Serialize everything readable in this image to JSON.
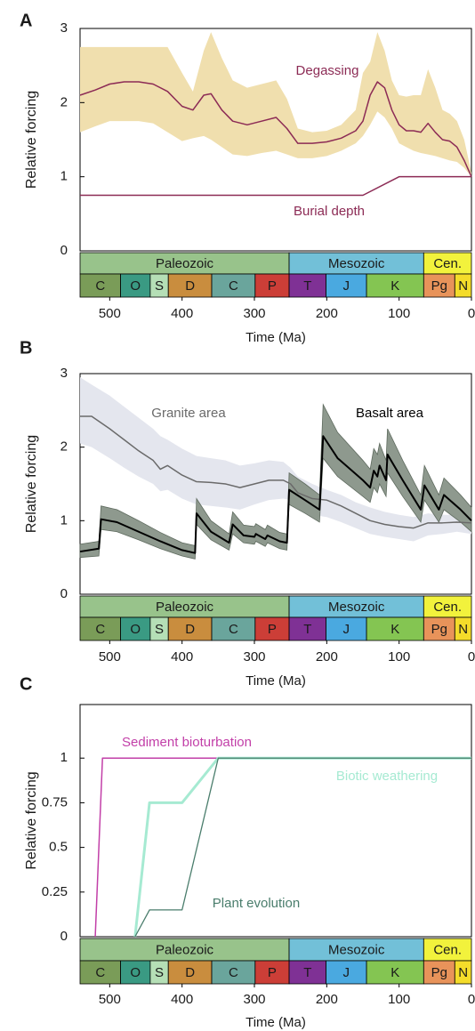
{
  "timescale": {
    "eras": [
      {
        "name": "Paleozoic",
        "start": 541,
        "end": 252,
        "color": "#98c38b"
      },
      {
        "name": "Mesozoic",
        "start": 252,
        "end": 66,
        "color": "#72c0d8"
      },
      {
        "name": "Cen.",
        "start": 66,
        "end": 0,
        "color": "#f2f23c"
      }
    ],
    "periods": [
      {
        "name": "C",
        "start": 541,
        "end": 485,
        "color": "#7a9c58"
      },
      {
        "name": "O",
        "start": 485,
        "end": 444,
        "color": "#3a9a83"
      },
      {
        "name": "S",
        "start": 444,
        "end": 419,
        "color": "#b5dfb6"
      },
      {
        "name": "D",
        "start": 419,
        "end": 359,
        "color": "#c98d3e"
      },
      {
        "name": "C",
        "start": 359,
        "end": 299,
        "color": "#6aa59c"
      },
      {
        "name": "P",
        "start": 299,
        "end": 252,
        "color": "#cc3e37"
      },
      {
        "name": "T",
        "start": 252,
        "end": 201,
        "color": "#7f3195"
      },
      {
        "name": "J",
        "start": 201,
        "end": 145,
        "color": "#4aa9e0"
      },
      {
        "name": "K",
        "start": 145,
        "end": 66,
        "color": "#84c552"
      },
      {
        "name": "Pg",
        "start": 66,
        "end": 23,
        "color": "#e8935a"
      },
      {
        "name": "N",
        "start": 23,
        "end": 0,
        "color": "#f4dc2a"
      }
    ]
  },
  "chart_data": [
    {
      "type": "line",
      "panel_label": "A",
      "y_label": "Relative forcing",
      "x_label": "Time (Ma)",
      "xlim": [
        541,
        0
      ],
      "xticks": [
        500,
        400,
        300,
        200,
        100,
        0
      ],
      "ylim": [
        0,
        3
      ],
      "yticks": [
        0,
        1,
        2,
        3
      ],
      "series": [
        {
          "name": "Degassing",
          "color": "#8c2b55",
          "band_color": "#f0dfae",
          "x": [
            541,
            520,
            500,
            480,
            460,
            440,
            420,
            400,
            385,
            370,
            360,
            345,
            330,
            310,
            290,
            270,
            255,
            240,
            220,
            200,
            180,
            160,
            150,
            140,
            130,
            120,
            110,
            100,
            90,
            80,
            70,
            60,
            50,
            40,
            30,
            20,
            10,
            0
          ],
          "values": [
            2.1,
            2.17,
            2.25,
            2.28,
            2.28,
            2.25,
            2.15,
            1.95,
            1.9,
            2.1,
            2.12,
            1.9,
            1.75,
            1.7,
            1.75,
            1.8,
            1.65,
            1.45,
            1.45,
            1.47,
            1.52,
            1.62,
            1.75,
            2.1,
            2.28,
            2.2,
            1.9,
            1.7,
            1.62,
            1.62,
            1.6,
            1.72,
            1.6,
            1.5,
            1.48,
            1.4,
            1.22,
            1.0
          ],
          "band_low": [
            1.6,
            1.68,
            1.75,
            1.75,
            1.75,
            1.72,
            1.6,
            1.48,
            1.52,
            1.55,
            1.5,
            1.4,
            1.3,
            1.28,
            1.32,
            1.35,
            1.3,
            1.25,
            1.25,
            1.28,
            1.35,
            1.45,
            1.55,
            1.7,
            1.88,
            1.8,
            1.65,
            1.45,
            1.4,
            1.35,
            1.32,
            1.3,
            1.28,
            1.25,
            1.22,
            1.2,
            1.12,
            1.0
          ],
          "band_high": [
            2.75,
            2.75,
            2.75,
            2.75,
            2.75,
            2.75,
            2.75,
            2.4,
            2.15,
            2.7,
            2.95,
            2.6,
            2.3,
            2.2,
            2.25,
            2.3,
            2.05,
            1.65,
            1.6,
            1.62,
            1.7,
            1.9,
            2.4,
            2.55,
            2.95,
            2.7,
            2.3,
            2.1,
            2.08,
            2.1,
            2.1,
            2.45,
            2.2,
            1.9,
            1.85,
            1.75,
            1.5,
            1.05
          ]
        },
        {
          "name": "Burial depth",
          "color": "#8c2b55",
          "x": [
            541,
            150,
            100,
            0
          ],
          "values": [
            0.75,
            0.75,
            1,
            1
          ]
        }
      ]
    },
    {
      "type": "line",
      "panel_label": "B",
      "y_label": "Relative forcing",
      "x_label": "Time (Ma)",
      "xlim": [
        541,
        0
      ],
      "xticks": [
        500,
        400,
        300,
        200,
        100,
        0
      ],
      "ylim": [
        0,
        3
      ],
      "yticks": [
        0,
        1,
        2,
        3
      ],
      "series": [
        {
          "name": "Granite area",
          "color": "#6a6a6a",
          "band_color": "#e4e6ee",
          "x": [
            541,
            525,
            500,
            480,
            460,
            440,
            430,
            420,
            400,
            380,
            360,
            340,
            320,
            300,
            280,
            260,
            250,
            240,
            220,
            200,
            180,
            160,
            140,
            120,
            100,
            80,
            60,
            40,
            20,
            0
          ],
          "values": [
            2.42,
            2.42,
            2.25,
            2.1,
            1.95,
            1.82,
            1.7,
            1.75,
            1.62,
            1.53,
            1.52,
            1.5,
            1.45,
            1.5,
            1.55,
            1.55,
            1.5,
            1.38,
            1.3,
            1.28,
            1.2,
            1.1,
            1.0,
            0.95,
            0.92,
            0.9,
            0.97,
            0.97,
            0.98,
            0.97
          ],
          "band_low": [
            2.05,
            2.0,
            1.85,
            1.72,
            1.6,
            1.5,
            1.4,
            1.42,
            1.3,
            1.22,
            1.2,
            1.18,
            1.15,
            1.22,
            1.28,
            1.3,
            1.28,
            1.15,
            1.08,
            1.05,
            0.98,
            0.9,
            0.82,
            0.78,
            0.75,
            0.72,
            0.8,
            0.82,
            0.85,
            0.82
          ],
          "band_high": [
            2.95,
            2.85,
            2.7,
            2.55,
            2.4,
            2.25,
            2.15,
            2.1,
            1.98,
            1.88,
            1.85,
            1.82,
            1.75,
            1.78,
            1.82,
            1.8,
            1.72,
            1.6,
            1.5,
            1.42,
            1.35,
            1.25,
            1.18,
            1.12,
            1.08,
            1.05,
            1.1,
            1.08,
            1.08,
            1.05
          ]
        },
        {
          "name": "Basalt area",
          "color": "#000000",
          "band_color": "#8e998e",
          "x": [
            541,
            515,
            512,
            490,
            460,
            430,
            400,
            382,
            380,
            360,
            335,
            330,
            315,
            300,
            298,
            285,
            282,
            265,
            255,
            252,
            230,
            210,
            205,
            185,
            150,
            140,
            135,
            130,
            127,
            118,
            116,
            95,
            70,
            65,
            45,
            38,
            15,
            0
          ],
          "values": [
            0.58,
            0.62,
            1.02,
            0.98,
            0.85,
            0.72,
            0.6,
            0.56,
            1.1,
            0.85,
            0.7,
            0.95,
            0.8,
            0.78,
            0.82,
            0.75,
            0.8,
            0.72,
            0.7,
            1.42,
            1.28,
            1.15,
            2.15,
            1.85,
            1.55,
            1.45,
            1.68,
            1.6,
            1.75,
            1.55,
            1.9,
            1.55,
            1.15,
            1.48,
            1.15,
            1.35,
            1.15,
            1.0
          ],
          "band_low": [
            0.5,
            0.52,
            0.88,
            0.85,
            0.74,
            0.62,
            0.52,
            0.48,
            0.95,
            0.74,
            0.6,
            0.82,
            0.7,
            0.68,
            0.72,
            0.65,
            0.7,
            0.62,
            0.6,
            1.22,
            1.1,
            0.98,
            1.85,
            1.6,
            1.33,
            1.25,
            1.45,
            1.38,
            1.5,
            1.33,
            1.65,
            1.33,
            0.98,
            1.28,
            0.98,
            1.15,
            0.98,
            0.85
          ],
          "band_high": [
            0.68,
            0.72,
            1.2,
            1.15,
            1.0,
            0.84,
            0.7,
            0.66,
            1.3,
            1.0,
            0.82,
            1.12,
            0.94,
            0.92,
            0.96,
            0.88,
            0.94,
            0.84,
            0.82,
            1.65,
            1.5,
            1.35,
            2.58,
            2.2,
            1.82,
            1.7,
            1.98,
            1.9,
            2.05,
            1.82,
            2.25,
            1.82,
            1.35,
            1.75,
            1.35,
            1.58,
            1.35,
            1.18
          ]
        }
      ]
    },
    {
      "type": "line",
      "panel_label": "C",
      "y_label": "Relative forcing",
      "x_label": "Time (Ma)",
      "xlim": [
        541,
        0
      ],
      "xticks": [
        500,
        400,
        300,
        200,
        100,
        0
      ],
      "ylim": [
        0,
        1.3
      ],
      "yticks": [
        0,
        0.25,
        0.5,
        0.75,
        1
      ],
      "series": [
        {
          "name": "Sediment bioturbation",
          "color": "#c23fa8",
          "x": [
            520,
            510,
            0
          ],
          "values": [
            0,
            1,
            1
          ]
        },
        {
          "name": "Biotic weathering",
          "color": "#a6ead2",
          "x": [
            465,
            445,
            400,
            350,
            0
          ],
          "values": [
            0,
            0.75,
            0.75,
            1,
            1
          ]
        },
        {
          "name": "Plant evolution",
          "color": "#4a7d6c",
          "x": [
            465,
            445,
            400,
            350,
            0
          ],
          "values": [
            0,
            0.15,
            0.15,
            1,
            1
          ]
        }
      ]
    }
  ]
}
